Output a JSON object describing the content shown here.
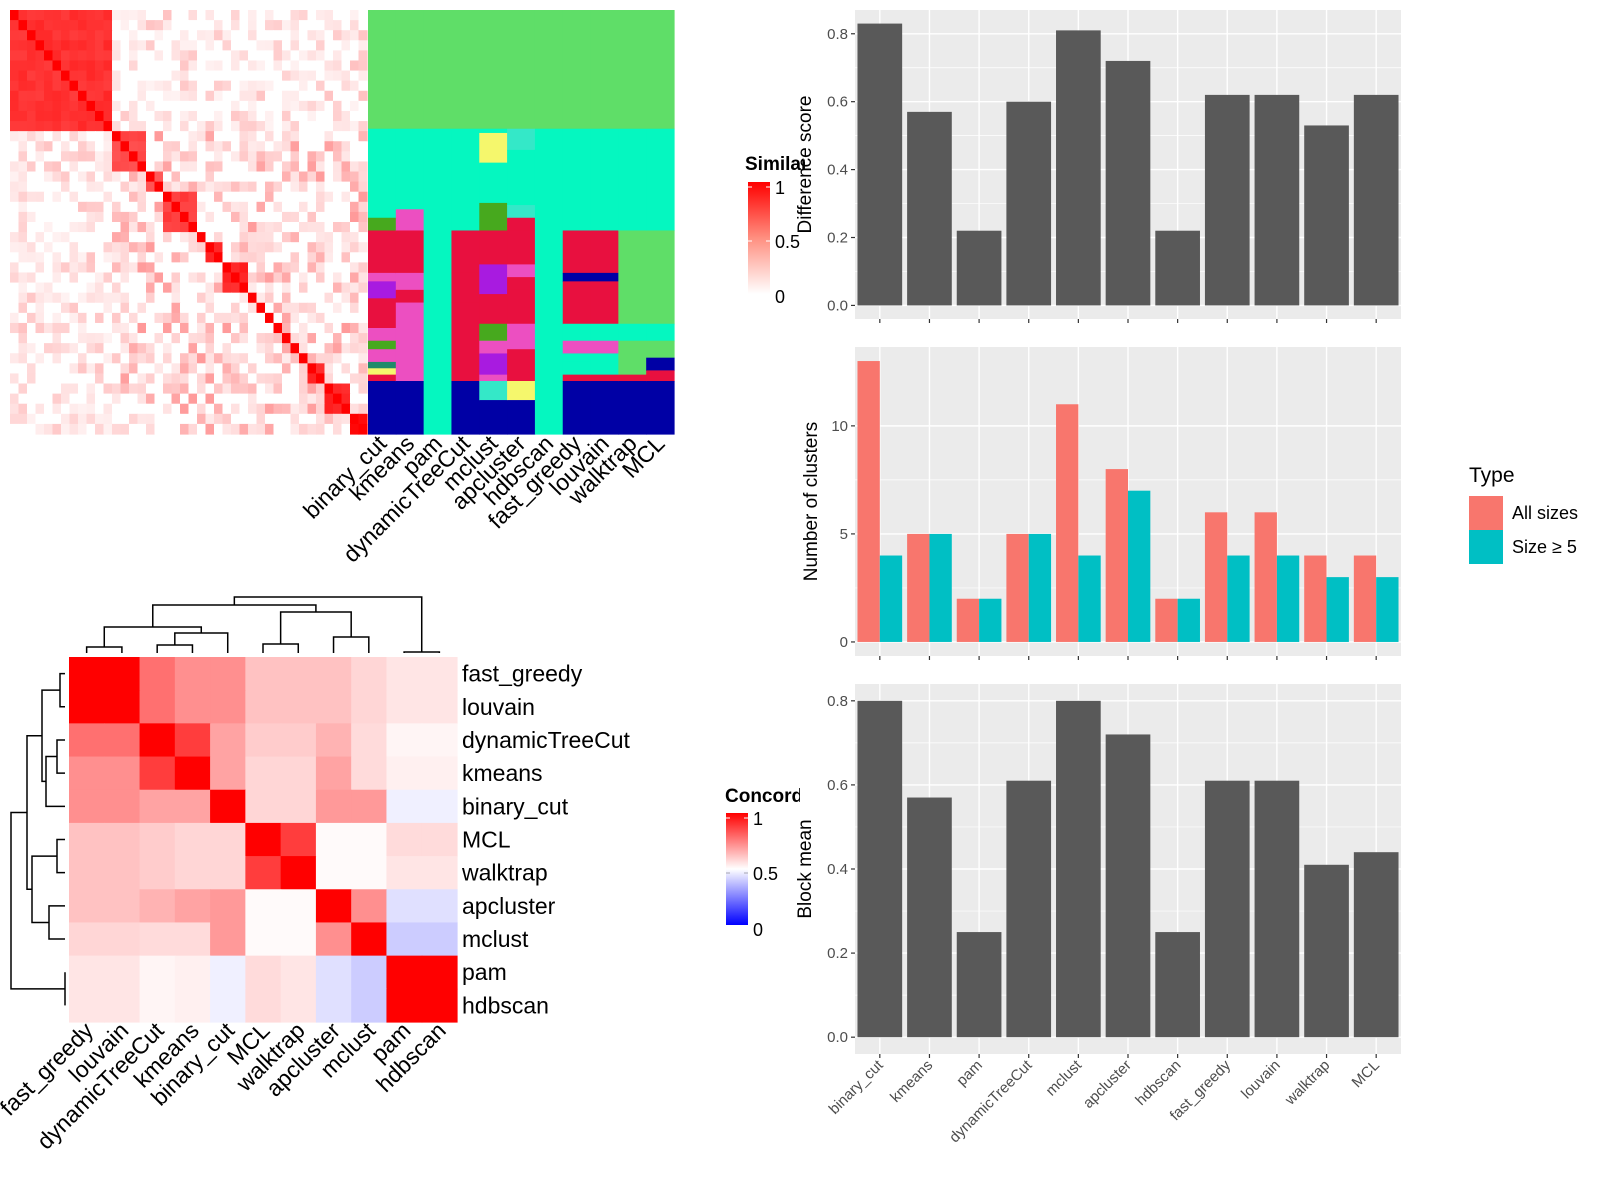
{
  "colors": {
    "panel_bg": "#ebebeb",
    "grid": "#ffffff",
    "bar": "#595959",
    "all_sizes": "#f8766d",
    "size5": "#00bfc4",
    "heat_high": "#ff0000",
    "heat_mid": "#ffffff",
    "heat_low": "#0000ff"
  },
  "similarity_legend": {
    "title": "Similarity",
    "ticks": [
      "1",
      "0.5",
      "0"
    ]
  },
  "concordance_legend": {
    "title": "Concordance",
    "ticks": [
      "1",
      "0.5",
      "0"
    ]
  },
  "type_legend": {
    "title": "Type",
    "items": [
      "All sizes",
      "Size ≥ 5"
    ]
  },
  "chart_data": [
    {
      "id": "similarity-heatmap",
      "type": "heatmap",
      "title": "",
      "description_of_values": "term similarity matrix, red block-diagonal clusters",
      "blocks": [
        {
          "rows": 12,
          "level": 0.85
        },
        {
          "rows": 4,
          "level": 0.75
        },
        {
          "rows": 2,
          "level": 0.7
        },
        {
          "rows": 4,
          "level": 0.8
        },
        {
          "rows": 1,
          "level": 1
        },
        {
          "rows": 2,
          "level": 0.9
        },
        {
          "rows": 3,
          "level": 0.9
        },
        {
          "rows": 1,
          "level": 1
        },
        {
          "rows": 1,
          "level": 1
        },
        {
          "rows": 1,
          "level": 1
        },
        {
          "rows": 1,
          "level": 1
        },
        {
          "rows": 1,
          "level": 1
        },
        {
          "rows": 1,
          "level": 1
        },
        {
          "rows": 1,
          "level": 1
        },
        {
          "rows": 2,
          "level": 0.9
        },
        {
          "rows": 3,
          "level": 0.9
        },
        {
          "rows": 2,
          "level": 1
        }
      ]
    },
    {
      "id": "cluster-assignment-heatmap",
      "type": "heatmap",
      "columns": [
        "binary_cut",
        "kmeans",
        "pam",
        "dynamicTreeCut",
        "mclust",
        "apcluster",
        "hdbscan",
        "fast_greedy",
        "louvain",
        "walktrap",
        "MCL"
      ]
    },
    {
      "id": "concordance-heatmap",
      "type": "heatmap",
      "rows": [
        "fast_greedy",
        "louvain",
        "dynamicTreeCut",
        "kmeans",
        "binary_cut",
        "MCL",
        "walktrap",
        "apcluster",
        "mclust",
        "pam",
        "hdbscan"
      ],
      "columns": [
        "fast_greedy",
        "louvain",
        "dynamicTreeCut",
        "kmeans",
        "binary_cut",
        "MCL",
        "walktrap",
        "apcluster",
        "mclust",
        "pam",
        "hdbscan"
      ],
      "values": [
        [
          1.0,
          1.0,
          0.78,
          0.72,
          0.72,
          0.62,
          0.62,
          0.62,
          0.58,
          0.55,
          0.55
        ],
        [
          1.0,
          1.0,
          0.78,
          0.72,
          0.72,
          0.62,
          0.62,
          0.62,
          0.58,
          0.55,
          0.55
        ],
        [
          0.78,
          0.78,
          1.0,
          0.88,
          0.68,
          0.6,
          0.6,
          0.65,
          0.57,
          0.52,
          0.52
        ],
        [
          0.72,
          0.72,
          0.88,
          1.0,
          0.68,
          0.58,
          0.58,
          0.68,
          0.57,
          0.53,
          0.53
        ],
        [
          0.72,
          0.72,
          0.68,
          0.68,
          1.0,
          0.58,
          0.58,
          0.7,
          0.7,
          0.47,
          0.47
        ],
        [
          0.62,
          0.62,
          0.6,
          0.58,
          0.58,
          1.0,
          0.88,
          0.51,
          0.51,
          0.57,
          0.57
        ],
        [
          0.62,
          0.62,
          0.6,
          0.58,
          0.58,
          0.88,
          1.0,
          0.51,
          0.51,
          0.55,
          0.55
        ],
        [
          0.62,
          0.62,
          0.65,
          0.68,
          0.7,
          0.51,
          0.51,
          1.0,
          0.72,
          0.44,
          0.44
        ],
        [
          0.58,
          0.58,
          0.57,
          0.57,
          0.7,
          0.51,
          0.51,
          0.72,
          1.0,
          0.4,
          0.4
        ],
        [
          0.55,
          0.55,
          0.52,
          0.53,
          0.47,
          0.57,
          0.55,
          0.44,
          0.4,
          1.0,
          1.0
        ],
        [
          0.55,
          0.55,
          0.52,
          0.53,
          0.47,
          0.57,
          0.55,
          0.44,
          0.4,
          1.0,
          1.0
        ]
      ],
      "legend": "Concordance"
    },
    {
      "id": "difference-score",
      "type": "bar",
      "categories": [
        "binary_cut",
        "kmeans",
        "pam",
        "dynamicTreeCut",
        "mclust",
        "apcluster",
        "hdbscan",
        "fast_greedy",
        "louvain",
        "walktrap",
        "MCL"
      ],
      "values": [
        0.83,
        0.57,
        0.22,
        0.6,
        0.81,
        0.72,
        0.22,
        0.62,
        0.62,
        0.53,
        0.62
      ],
      "ylabel": "Difference score",
      "ylim": [
        -0.04,
        0.87
      ],
      "yticks": [
        0.0,
        0.2,
        0.4,
        0.6,
        0.8
      ],
      "ytick_labels": [
        "0.0",
        "0.2",
        "0.4",
        "0.6",
        "0.8"
      ]
    },
    {
      "id": "number-of-clusters",
      "type": "bar",
      "categories": [
        "binary_cut",
        "kmeans",
        "pam",
        "dynamicTreeCut",
        "mclust",
        "apcluster",
        "hdbscan",
        "fast_greedy",
        "louvain",
        "walktrap",
        "MCL"
      ],
      "series": [
        {
          "name": "All sizes",
          "values": [
            13,
            5,
            2,
            5,
            11,
            8,
            2,
            6,
            6,
            4,
            4
          ]
        },
        {
          "name": "Size ≥ 5",
          "values": [
            4,
            5,
            2,
            5,
            4,
            7,
            2,
            4,
            4,
            3,
            3
          ]
        }
      ],
      "ylabel": "Number of clusters",
      "ylim": [
        -0.65,
        13.65
      ],
      "yticks": [
        0,
        5,
        10
      ],
      "ytick_labels": [
        "0",
        "5",
        "10"
      ],
      "legend_title": "Type"
    },
    {
      "id": "block-mean",
      "type": "bar",
      "categories": [
        "binary_cut",
        "kmeans",
        "pam",
        "dynamicTreeCut",
        "mclust",
        "apcluster",
        "hdbscan",
        "fast_greedy",
        "louvain",
        "walktrap",
        "MCL"
      ],
      "values": [
        0.8,
        0.57,
        0.25,
        0.61,
        0.8,
        0.72,
        0.25,
        0.61,
        0.61,
        0.41,
        0.44
      ],
      "ylabel": "Block mean",
      "ylim": [
        -0.04,
        0.84
      ],
      "yticks": [
        0.0,
        0.2,
        0.4,
        0.6,
        0.8
      ],
      "ytick_labels": [
        "0.0",
        "0.2",
        "0.4",
        "0.6",
        "0.8"
      ]
    }
  ]
}
